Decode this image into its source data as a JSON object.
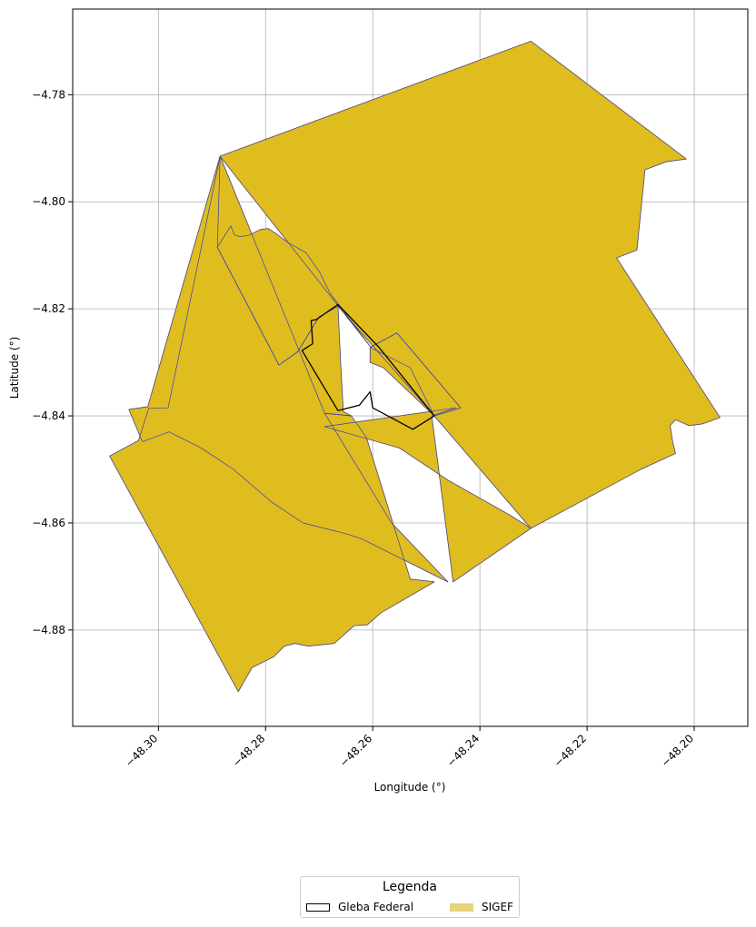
{
  "chart_data": {
    "type": "map",
    "xlabel": "Longitude (°)",
    "ylabel": "Latitude (°)",
    "xlim": [
      -48.316,
      -48.19
    ],
    "ylim": [
      -4.898,
      -4.764
    ],
    "x_ticks": [
      -48.3,
      -48.28,
      -48.26,
      -48.24,
      -48.22,
      -48.2
    ],
    "x_tick_labels": [
      "−48.30",
      "−48.28",
      "−48.26",
      "−48.24",
      "−48.22",
      "−48.20"
    ],
    "y_ticks": [
      -4.78,
      -4.8,
      -4.82,
      -4.84,
      -4.86,
      -4.88
    ],
    "y_tick_labels": [
      "−4.78",
      "−4.80",
      "−4.82",
      "−4.84",
      "−4.86",
      "−4.88"
    ],
    "grid": true,
    "colors": {
      "sigef_fill": "#DFBD1F",
      "sigef_edge": "#3B3BB8",
      "gleba_edge": "#000000",
      "legend_sigef": "#E8D27A",
      "grid": "#b0b0b0"
    },
    "layers": [
      {
        "name": "SIGEF",
        "style": "filled",
        "polygons": [
          [
            [
              -48.2305,
              -4.77
            ],
            [
              -48.2015,
              -4.792
            ],
            [
              -48.2052,
              -4.7925
            ],
            [
              -48.2092,
              -4.794
            ],
            [
              -48.2107,
              -4.809
            ],
            [
              -48.2145,
              -4.8105
            ],
            [
              -48.1952,
              -4.8403
            ],
            [
              -48.1985,
              -4.8415
            ],
            [
              -48.201,
              -4.8418
            ],
            [
              -48.2035,
              -4.8407
            ],
            [
              -48.2045,
              -4.8418
            ],
            [
              -48.204,
              -4.845
            ],
            [
              -48.2035,
              -4.847
            ],
            [
              -48.21,
              -4.85
            ],
            [
              -48.2305,
              -4.861
            ],
            [
              -48.2485,
              -4.84
            ],
            [
              -48.2665,
              -4.8195
            ],
            [
              -48.27,
              -4.8215
            ],
            [
              -48.2705,
              -4.8223
            ],
            [
              -48.274,
              -4.828
            ],
            [
              -48.2775,
              -4.8305
            ],
            [
              -48.289,
              -4.8085
            ],
            [
              -48.2865,
              -4.8045
            ],
            [
              -48.2858,
              -4.8062
            ],
            [
              -48.2848,
              -4.8065
            ],
            [
              -48.283,
              -4.8062
            ],
            [
              -48.281,
              -4.8052
            ],
            [
              -48.2795,
              -4.805
            ],
            [
              -48.278,
              -4.806
            ],
            [
              -48.276,
              -4.8075
            ],
            [
              -48.2725,
              -4.8095
            ],
            [
              -48.27,
              -4.813
            ],
            [
              -48.268,
              -4.817
            ],
            [
              -48.265,
              -4.821
            ],
            [
              -48.2605,
              -4.827
            ],
            [
              -48.2885,
              -4.7915
            ]
          ],
          [
            [
              -48.2885,
              -4.7915
            ],
            [
              -48.289,
              -4.8085
            ],
            [
              -48.2775,
              -4.8305
            ],
            [
              -48.274,
              -4.828
            ],
            [
              -48.2705,
              -4.8223
            ],
            [
              -48.27,
              -4.8215
            ],
            [
              -48.2665,
              -4.8195
            ],
            [
              -48.266,
              -4.83
            ],
            [
              -48.2655,
              -4.8392
            ],
            [
              -48.264,
              -4.84
            ],
            [
              -48.269,
              -4.8395
            ],
            [
              -48.2565,
              -4.86
            ],
            [
              -48.246,
              -4.871
            ],
            [
              -48.25,
              -4.869
            ],
            [
              -48.254,
              -4.867
            ],
            [
              -48.258,
              -4.865
            ],
            [
              -48.26,
              -4.864
            ],
            [
              -48.262,
              -4.863
            ],
            [
              -48.265,
              -4.862
            ],
            [
              -48.269,
              -4.861
            ],
            [
              -48.273,
              -4.86
            ],
            [
              -48.279,
              -4.856
            ],
            [
              -48.286,
              -4.85
            ],
            [
              -48.292,
              -4.846
            ],
            [
              -48.298,
              -4.843
            ],
            [
              -48.303,
              -4.8448
            ],
            [
              -48.3055,
              -4.8388
            ],
            [
              -48.302,
              -4.8383
            ],
            [
              -48.2885,
              -4.7915
            ]
          ],
          [
            [
              -48.3091,
              -4.8475
            ],
            [
              -48.3037,
              -4.8446
            ],
            [
              -48.3018,
              -4.8386
            ],
            [
              -48.2982,
              -4.8385
            ],
            [
              -48.2885,
              -4.7915
            ],
            [
              -48.269,
              -4.8395
            ],
            [
              -48.264,
              -4.84
            ],
            [
              -48.2612,
              -4.844
            ],
            [
              -48.253,
              -4.8705
            ],
            [
              -48.2485,
              -4.871
            ],
            [
              -48.2585,
              -4.8768
            ],
            [
              -48.261,
              -4.879
            ],
            [
              -48.2635,
              -4.8792
            ],
            [
              -48.2672,
              -4.8825
            ],
            [
              -48.272,
              -4.883
            ],
            [
              -48.2745,
              -4.8825
            ],
            [
              -48.2765,
              -4.883
            ],
            [
              -48.2785,
              -4.885
            ],
            [
              -48.2825,
              -4.887
            ],
            [
              -48.2851,
              -4.8915
            ]
          ],
          [
            [
              -48.269,
              -4.842
            ],
            [
              -48.2445,
              -4.8385
            ],
            [
              -48.249,
              -4.84
            ],
            [
              -48.245,
              -4.871
            ],
            [
              -48.2305,
              -4.861
            ],
            [
              -48.2345,
              -4.8585
            ],
            [
              -48.246,
              -4.852
            ],
            [
              -48.255,
              -4.846
            ]
          ],
          [
            [
              -48.2605,
              -4.8272
            ],
            [
              -48.2555,
              -4.8245
            ],
            [
              -48.2436,
              -4.8385
            ],
            [
              -48.2485,
              -4.84
            ],
            [
              -48.258,
              -4.831
            ],
            [
              -48.2605,
              -4.83
            ]
          ],
          [
            [
              -48.2605,
              -4.8272
            ],
            [
              -48.2555,
              -4.8245
            ],
            [
              -48.2436,
              -4.8385
            ],
            [
              -48.2485,
              -4.84
            ],
            [
              -48.253,
              -4.831
            ],
            [
              -48.2605,
              -4.8272
            ]
          ]
        ]
      },
      {
        "name": "Gleba Federal",
        "style": "outline",
        "polygons": [
          [
            [
              -48.2665,
              -4.8192
            ],
            [
              -48.2705,
              -4.822
            ],
            [
              -48.2715,
              -4.8222
            ],
            [
              -48.2712,
              -4.8265
            ],
            [
              -48.2732,
              -4.8278
            ],
            [
              -48.2665,
              -4.839
            ],
            [
              -48.2625,
              -4.838
            ],
            [
              -48.2605,
              -4.8355
            ],
            [
              -48.26,
              -4.8385
            ],
            [
              -48.2525,
              -4.8425
            ],
            [
              -48.2485,
              -4.84
            ],
            [
              -48.259,
              -4.827
            ]
          ]
        ]
      }
    ],
    "legend": {
      "title": "Legenda",
      "position": "bottom-center",
      "entries": [
        "Gleba Federal",
        "SIGEF"
      ]
    }
  }
}
